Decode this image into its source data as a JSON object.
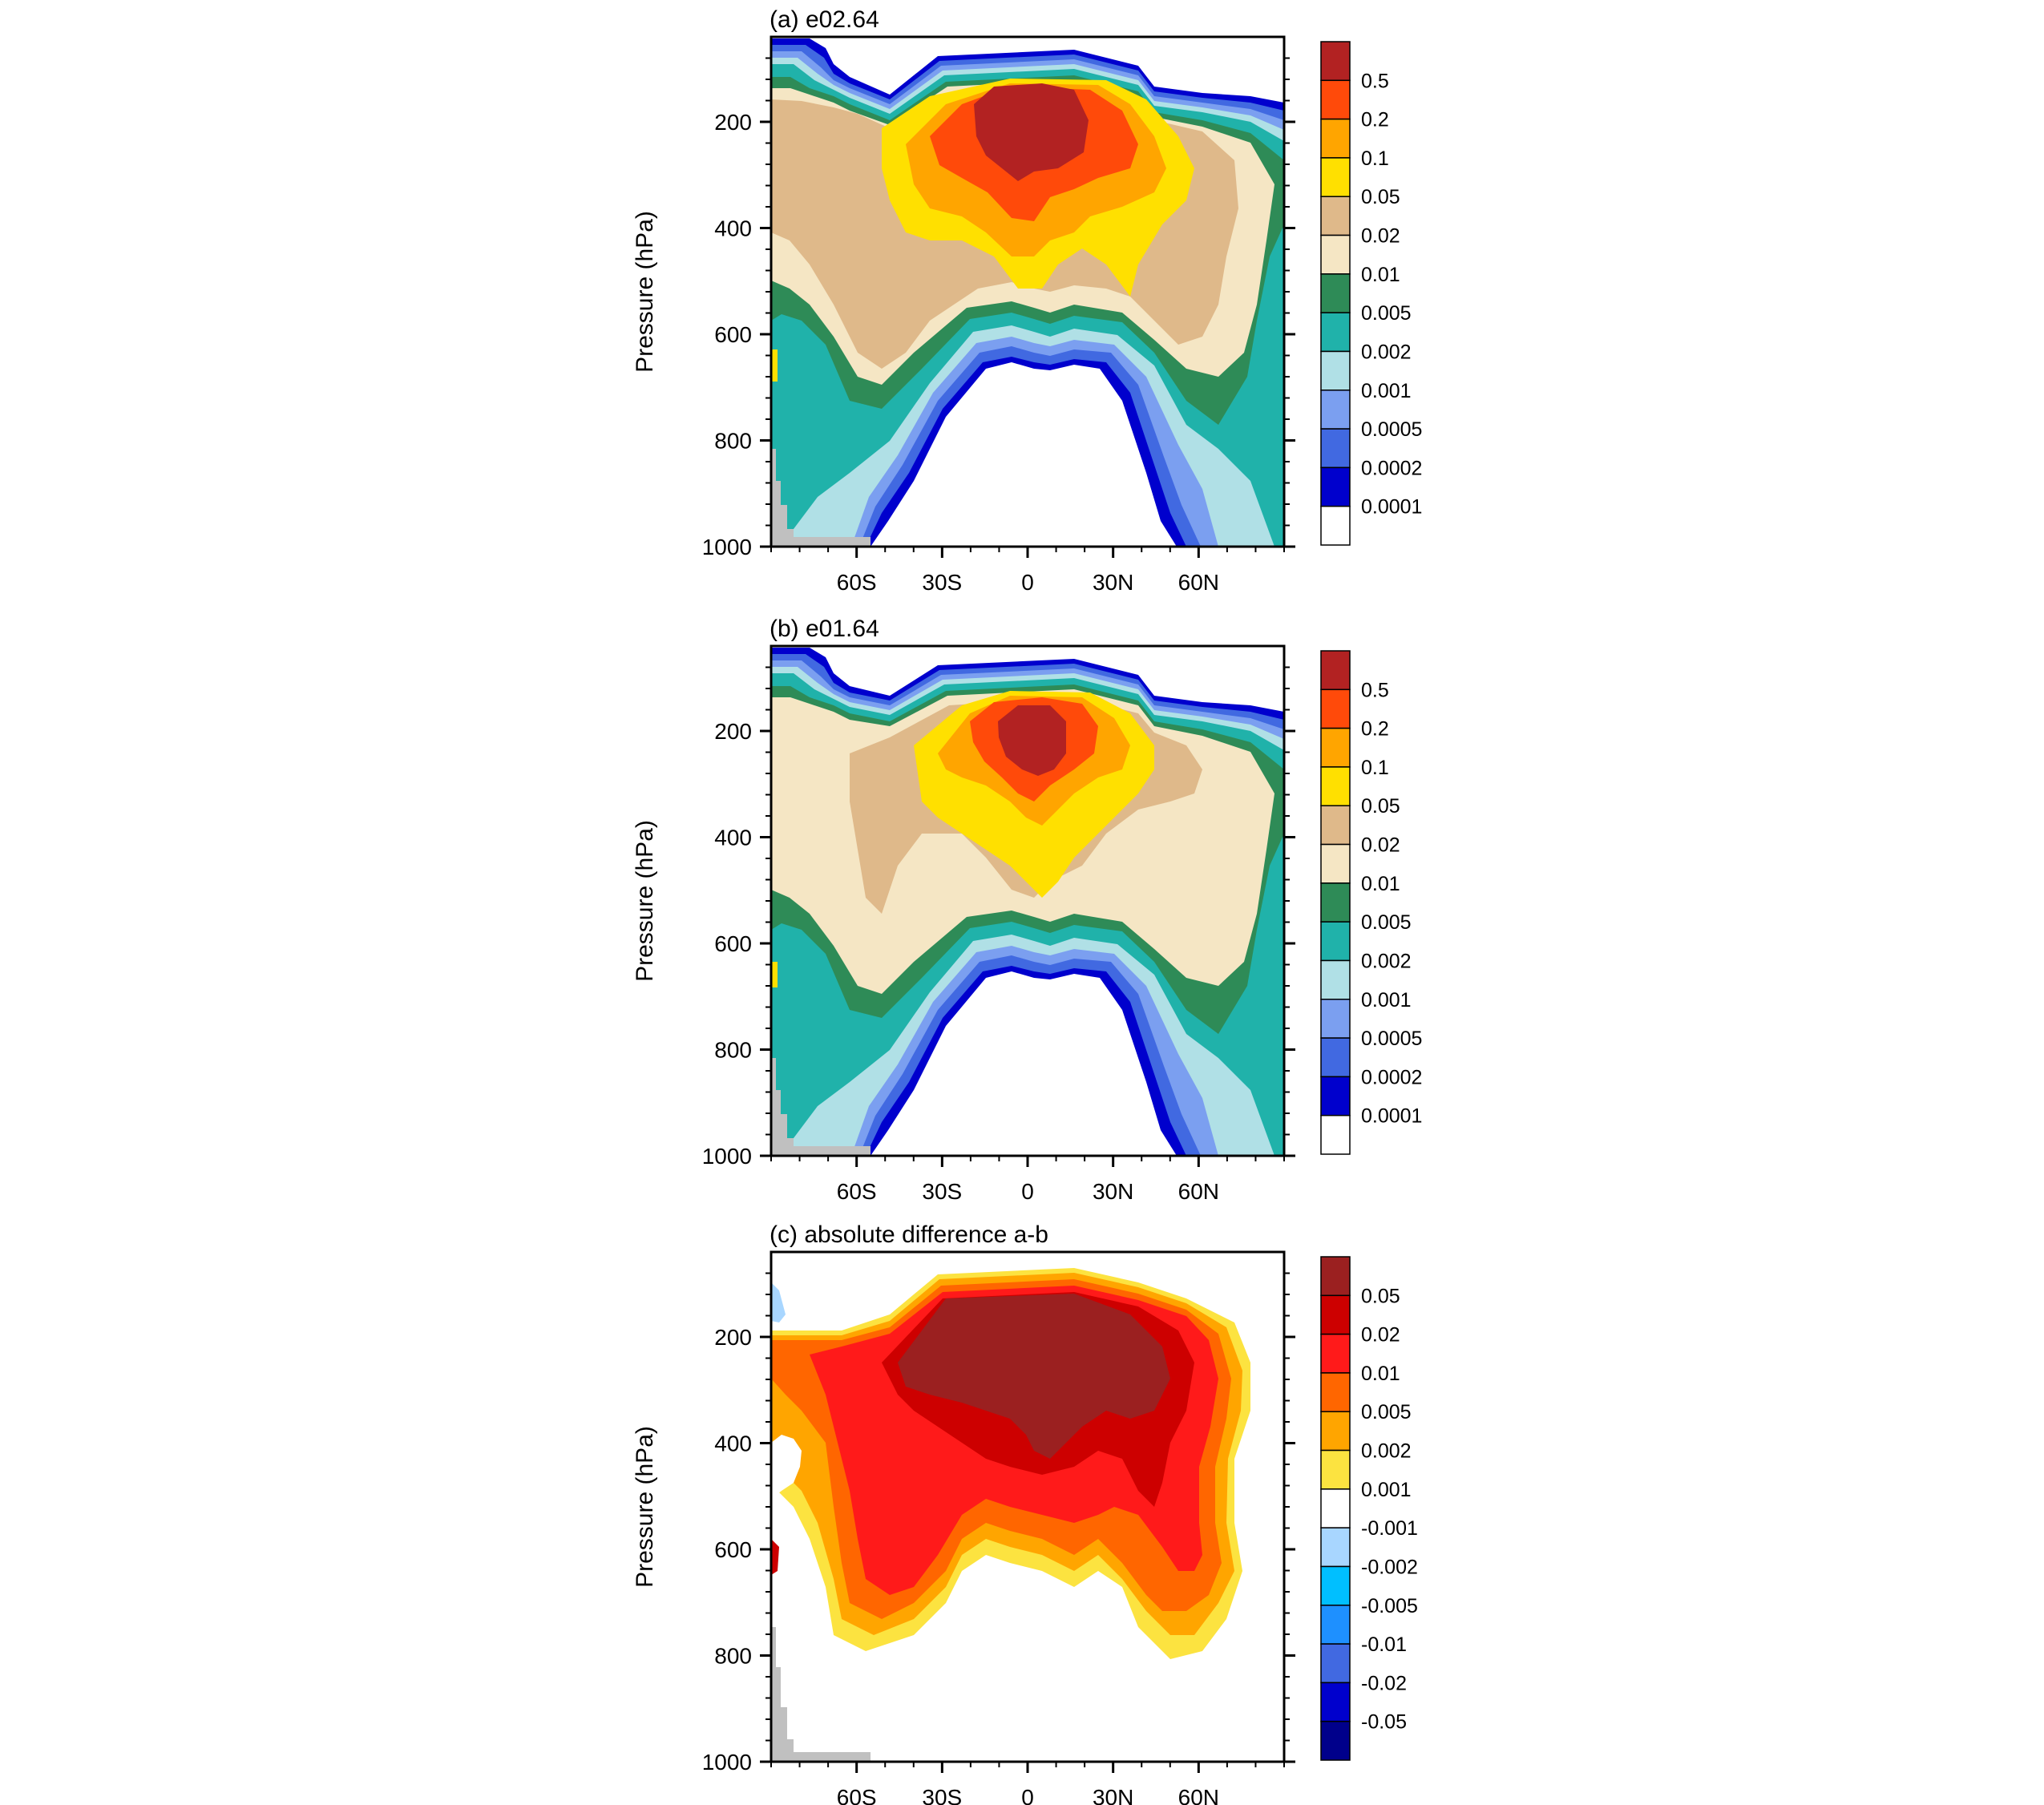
{
  "chart_data": [
    {
      "type": "contour",
      "title": "(a) e02.64",
      "ylabel": "Pressure (hPa)",
      "x_ticks": [
        "60S",
        "30S",
        "0",
        "30N",
        "60N"
      ],
      "y_ticks": [
        "200",
        "400",
        "600",
        "800",
        "1000"
      ],
      "ylim": [
        1000,
        40
      ],
      "xlim": [
        -90,
        90
      ],
      "colorbar": {
        "labels": [
          "0.5",
          "0.2",
          "0.1",
          "0.05",
          "0.02",
          "0.01",
          "0.005",
          "0.002",
          "0.001",
          "0.0005",
          "0.0002",
          "0.0001"
        ],
        "colors": [
          "#b22222",
          "#ff4a0a",
          "#ffa500",
          "#ffe000",
          "#dfb98a",
          "#f5e6c4",
          "#2e8b57",
          "#20b2aa",
          "#b0e0e6",
          "#7b9ff0",
          "#4169e1",
          "#0000cd",
          "#ffffff"
        ]
      },
      "maximum_region": {
        "lat_center": 0,
        "pressure_center": 170
      }
    },
    {
      "type": "contour",
      "title": "(b) e01.64",
      "ylabel": "Pressure (hPa)",
      "x_ticks": [
        "60S",
        "30S",
        "0",
        "30N",
        "60N"
      ],
      "y_ticks": [
        "200",
        "400",
        "600",
        "800",
        "1000"
      ],
      "ylim": [
        1000,
        40
      ],
      "xlim": [
        -90,
        90
      ],
      "colorbar": {
        "labels": [
          "0.5",
          "0.2",
          "0.1",
          "0.05",
          "0.02",
          "0.01",
          "0.005",
          "0.002",
          "0.001",
          "0.0005",
          "0.0002",
          "0.0001"
        ],
        "colors": [
          "#b22222",
          "#ff4a0a",
          "#ffa500",
          "#ffe000",
          "#dfb98a",
          "#f5e6c4",
          "#2e8b57",
          "#20b2aa",
          "#b0e0e6",
          "#7b9ff0",
          "#4169e1",
          "#0000cd",
          "#ffffff"
        ]
      },
      "maximum_region": {
        "lat_center": 0,
        "pressure_center": 180
      }
    },
    {
      "type": "contour",
      "title": "(c) absolute difference a-b",
      "ylabel": "Pressure (hPa)",
      "x_ticks": [
        "60S",
        "30S",
        "0",
        "30N",
        "60N"
      ],
      "y_ticks": [
        "200",
        "400",
        "600",
        "800",
        "1000"
      ],
      "ylim": [
        1000,
        40
      ],
      "xlim": [
        -90,
        90
      ],
      "colorbar": {
        "labels": [
          "0.05",
          "0.02",
          "0.01",
          "0.005",
          "0.002",
          "0.001",
          "-0.001",
          "-0.002",
          "-0.005",
          "-0.01",
          "-0.02",
          "-0.05"
        ],
        "colors": [
          "#9b2020",
          "#cd0000",
          "#ff1a1a",
          "#ff6600",
          "#ffa500",
          "#fce340",
          "#ffffff",
          "#a8d6ff",
          "#00bfff",
          "#1e90ff",
          "#4169e1",
          "#0000cd",
          "#00008b"
        ]
      },
      "maximum_region": {
        "lat_center": 5,
        "pressure_center": 250
      }
    }
  ]
}
